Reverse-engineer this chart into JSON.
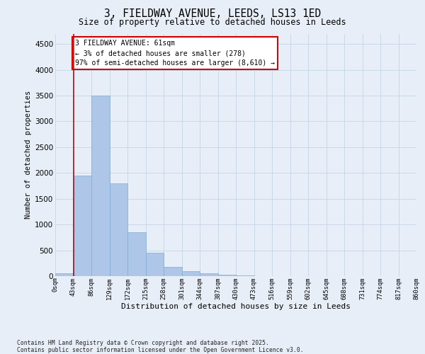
{
  "title_line1": "3, FIELDWAY AVENUE, LEEDS, LS13 1ED",
  "title_line2": "Size of property relative to detached houses in Leeds",
  "xlabel": "Distribution of detached houses by size in Leeds",
  "ylabel": "Number of detached properties",
  "bar_values": [
    50,
    1950,
    3500,
    1800,
    850,
    450,
    175,
    100,
    60,
    30,
    10,
    0,
    0,
    0,
    0,
    0,
    0,
    0,
    0,
    0
  ],
  "bar_labels": [
    "0sqm",
    "43sqm",
    "86sqm",
    "129sqm",
    "172sqm",
    "215sqm",
    "258sqm",
    "301sqm",
    "344sqm",
    "387sqm",
    "430sqm",
    "473sqm",
    "516sqm",
    "559sqm",
    "602sqm",
    "645sqm",
    "688sqm",
    "731sqm",
    "774sqm",
    "817sqm",
    "860sqm"
  ],
  "bar_color": "#aec6e8",
  "bar_edge_color": "#7aafd4",
  "grid_color": "#c8d8e8",
  "annotation_text": "3 FIELDWAY AVENUE: 61sqm\n← 3% of detached houses are smaller (278)\n97% of semi-detached houses are larger (8,610) →",
  "vline_color": "#cc0000",
  "vline_x": 1.0,
  "ylim": [
    0,
    4700
  ],
  "yticks": [
    0,
    500,
    1000,
    1500,
    2000,
    2500,
    3000,
    3500,
    4000,
    4500
  ],
  "bg_color": "#e8eef8",
  "footnote": "Contains HM Land Registry data © Crown copyright and database right 2025.\nContains public sector information licensed under the Open Government Licence v3.0."
}
